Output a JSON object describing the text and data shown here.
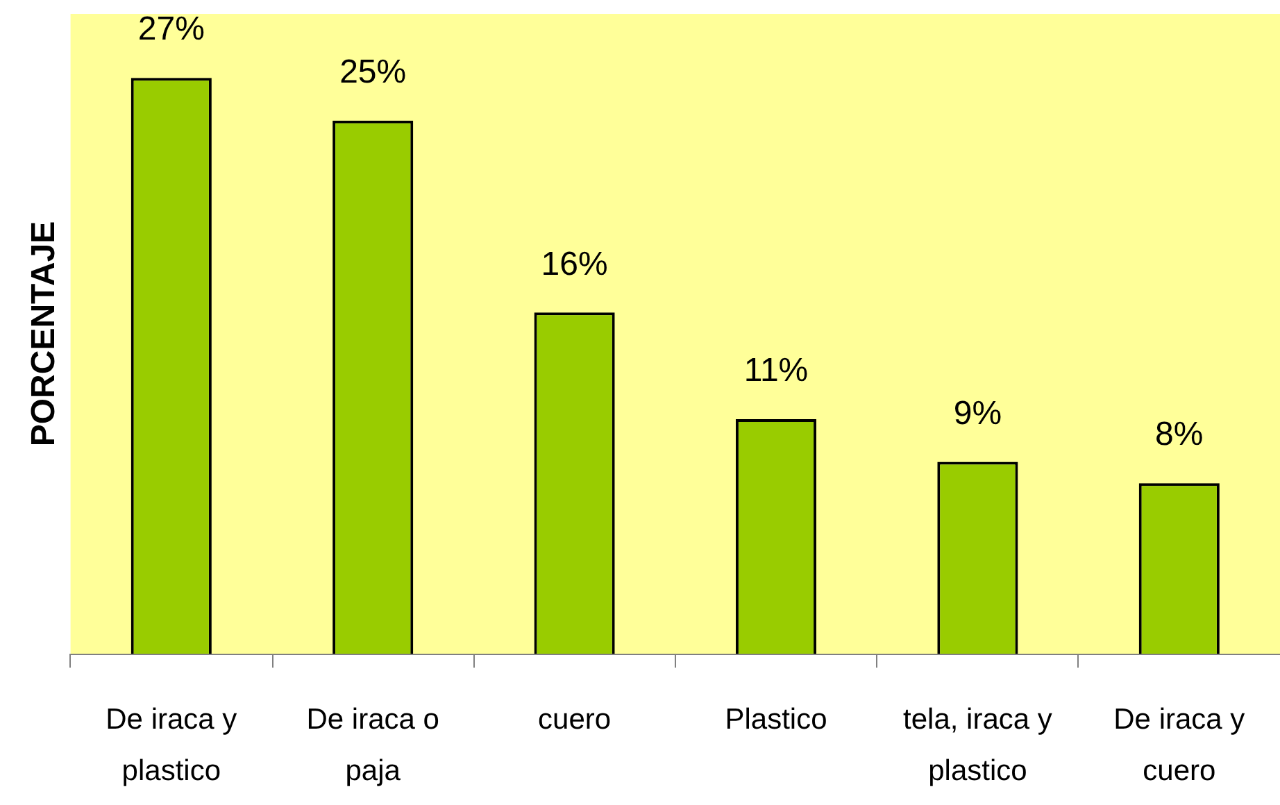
{
  "chart_data": {
    "type": "bar",
    "ylabel": "PORCENTAJE",
    "categories": [
      "De iraca y plastico",
      "De iraca o paja",
      "cuero",
      "Plastico",
      "tela, iraca y plastico",
      "De iraca y cuero"
    ],
    "values": [
      27,
      25,
      16,
      11,
      9,
      8
    ],
    "value_labels": [
      "27%",
      "25%",
      "16%",
      "11%",
      "9%",
      "8%"
    ],
    "color": "#99cc00",
    "ylim": [
      0,
      30
    ],
    "tick_labels": "x"
  }
}
